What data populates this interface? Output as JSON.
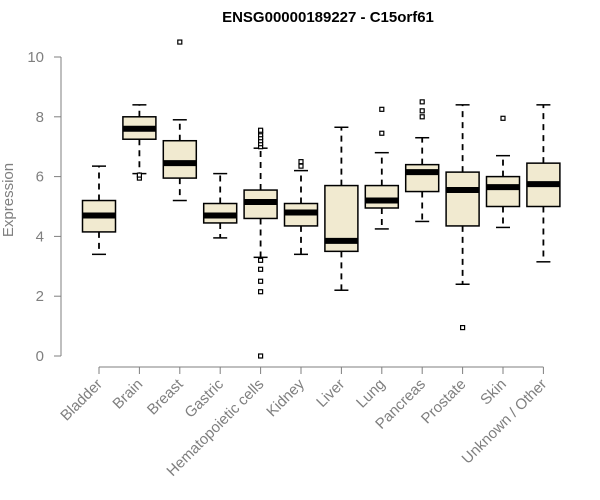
{
  "chart_data": {
    "type": "boxplot",
    "title": "ENSG00000189227 - C15orf61",
    "ylabel": "Expression",
    "xlabel": "",
    "ylim": [
      0,
      10
    ],
    "yticks": [
      0,
      2,
      4,
      6,
      8,
      10
    ],
    "grid": false,
    "categories": [
      "Bladder",
      "Brain",
      "Breast",
      "Gastric",
      "Hematopoietic cells",
      "Kidney",
      "Liver",
      "Lung",
      "Pancreas",
      "Prostate",
      "Skin",
      "Unknown / Other"
    ],
    "boxes": [
      {
        "category": "Bladder",
        "whisker_low": 3.4,
        "q1": 4.15,
        "median": 4.7,
        "q3": 5.2,
        "whisker_high": 6.35,
        "outliers": []
      },
      {
        "category": "Brain",
        "whisker_low": 6.1,
        "q1": 7.25,
        "median": 7.6,
        "q3": 8.0,
        "whisker_high": 8.4,
        "outliers": [
          5.95,
          6.05
        ]
      },
      {
        "category": "Breast",
        "whisker_low": 5.2,
        "q1": 5.95,
        "median": 6.45,
        "q3": 7.2,
        "whisker_high": 7.9,
        "outliers": [
          10.5
        ]
      },
      {
        "category": "Gastric",
        "whisker_low": 3.95,
        "q1": 4.45,
        "median": 4.7,
        "q3": 5.1,
        "whisker_high": 6.1,
        "outliers": []
      },
      {
        "category": "Hematopoietic cells",
        "whisker_low": 3.3,
        "q1": 4.6,
        "median": 5.15,
        "q3": 5.55,
        "whisker_high": 6.95,
        "outliers": [
          7.0,
          7.1,
          7.2,
          7.3,
          7.4,
          7.5,
          7.55,
          3.2,
          2.9,
          2.5,
          2.15,
          0.0
        ]
      },
      {
        "category": "Kidney",
        "whisker_low": 3.4,
        "q1": 4.35,
        "median": 4.8,
        "q3": 5.1,
        "whisker_high": 6.2,
        "outliers": [
          6.35,
          6.5
        ]
      },
      {
        "category": "Liver",
        "whisker_low": 2.2,
        "q1": 3.5,
        "median": 3.85,
        "q3": 5.7,
        "whisker_high": 7.65,
        "outliers": []
      },
      {
        "category": "Lung",
        "whisker_low": 4.25,
        "q1": 4.95,
        "median": 5.2,
        "q3": 5.7,
        "whisker_high": 6.8,
        "outliers": [
          7.45,
          8.25
        ]
      },
      {
        "category": "Pancreas",
        "whisker_low": 4.5,
        "q1": 5.5,
        "median": 6.15,
        "q3": 6.4,
        "whisker_high": 7.3,
        "outliers": [
          8.0,
          8.2,
          8.5
        ]
      },
      {
        "category": "Prostate",
        "whisker_low": 2.4,
        "q1": 4.35,
        "median": 5.55,
        "q3": 6.15,
        "whisker_high": 8.4,
        "outliers": [
          0.95
        ]
      },
      {
        "category": "Skin",
        "whisker_low": 4.3,
        "q1": 5.0,
        "median": 5.65,
        "q3": 6.0,
        "whisker_high": 6.7,
        "outliers": [
          7.95
        ]
      },
      {
        "category": "Unknown / Other",
        "whisker_low": 3.15,
        "q1": 5.0,
        "median": 5.75,
        "q3": 6.45,
        "whisker_high": 8.4,
        "outliers": []
      }
    ],
    "colors": {
      "box_fill": "#f1ead0",
      "box_stroke": "#000000",
      "axis": "#7f7f7f",
      "tick_text": "#7f7f7f"
    }
  }
}
